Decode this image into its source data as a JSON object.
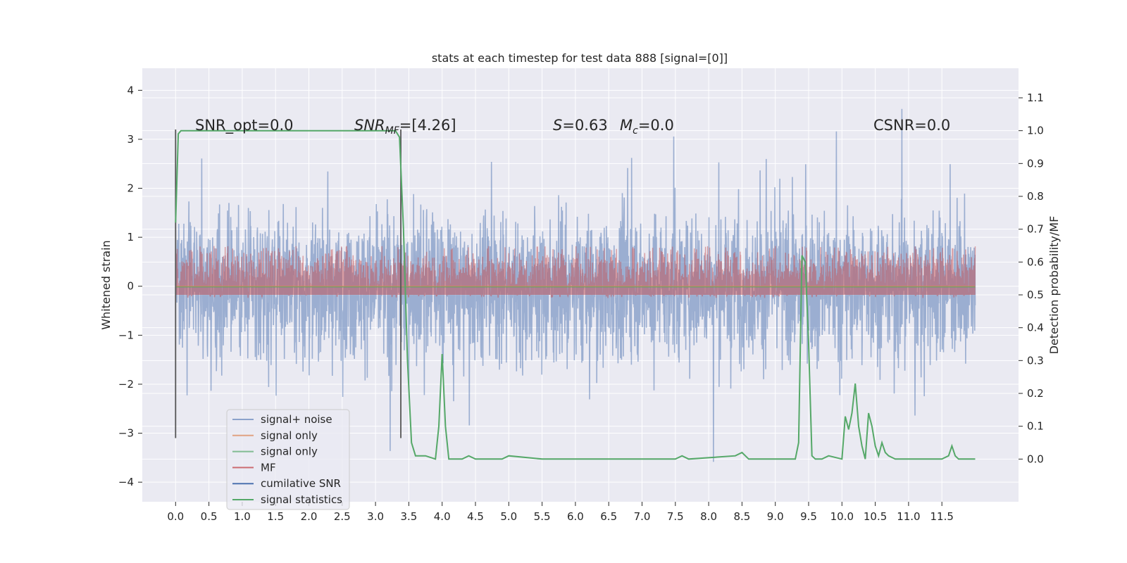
{
  "chart_data": {
    "type": "line",
    "title": "stats at each timestep for test data 888 [signal=[0]]",
    "ylabel_left": "Whitened strain",
    "ylabel_right": "Detection probability/MF",
    "xlim": [
      -0.5,
      12.65
    ],
    "ylim_left": [
      -4.4,
      4.45
    ],
    "ylim_right": [
      -0.13,
      1.19
    ],
    "x_ticks": [
      "0.0",
      "0.5",
      "1.0",
      "1.5",
      "2.0",
      "2.5",
      "3.0",
      "3.5",
      "4.0",
      "4.5",
      "5.0",
      "5.5",
      "6.0",
      "6.5",
      "7.0",
      "7.5",
      "8.0",
      "8.5",
      "9.0",
      "9.5",
      "10.0",
      "10.5",
      "11.0",
      "11.5"
    ],
    "y_ticks_left": [
      "4",
      "3",
      "2",
      "1",
      "0",
      "−1",
      "−2",
      "−3",
      "−4"
    ],
    "y_ticks_right": [
      "1.1",
      "1.0",
      "0.9",
      "0.8",
      "0.7",
      "0.6",
      "0.5",
      "0.4",
      "0.3",
      "0.2",
      "0.1",
      "0.0"
    ],
    "grid": true,
    "legend_position": "lower-left",
    "legend": [
      "signal+ noise",
      "signal only",
      "signal only",
      "MF",
      "cumilative SNR",
      "signal statistics"
    ],
    "colors": {
      "signal_noise": "#4c72b0",
      "signal_only_orange": "#dd8452",
      "signal_only_green": "#55a868",
      "mf": "#c44e52",
      "cumulative_snr": "#4c72b0",
      "signal_statistics": "#55a868",
      "background": "#eaeaf2",
      "grid": "#ffffff"
    },
    "annotations": {
      "snr_opt": "SNR_opt=0.0",
      "snr_mf": "=[4.26]",
      "snr_mf_label": "SNR",
      "snr_mf_sub": "MF",
      "s": "=0.63",
      "s_label": "S",
      "mc": "=0.0",
      "mc_label": "M",
      "mc_sub": "c",
      "csnr": "CSNR=0.0"
    },
    "vertical_markers": [
      0.0,
      3.38
    ],
    "signal_noise": {
      "x_range": [
        0.0,
        12.0
      ],
      "envelope_left": [
        -3.4,
        3.4
      ],
      "typical_band": [
        -1.5,
        1.5
      ]
    },
    "mf_band": [
      0.0,
      0.65
    ],
    "signal_statistics": {
      "x": [
        0.0,
        0.04,
        0.08,
        0.12,
        3.3,
        3.36,
        3.42,
        3.48,
        3.54,
        3.6,
        3.75,
        3.9,
        3.95,
        4.0,
        4.05,
        4.1,
        4.3,
        4.4,
        4.5,
        4.9,
        5.0,
        5.5,
        7.5,
        7.6,
        7.7,
        8.4,
        8.5,
        8.6,
        9.3,
        9.35,
        9.4,
        9.45,
        9.5,
        9.55,
        9.6,
        9.7,
        9.8,
        10.0,
        10.05,
        10.1,
        10.15,
        10.2,
        10.25,
        10.3,
        10.35,
        10.4,
        10.45,
        10.5,
        10.55,
        10.6,
        10.65,
        10.7,
        10.8,
        11.0,
        11.5,
        11.6,
        11.65,
        11.7,
        11.75,
        11.8,
        11.9,
        12.0
      ],
      "y": [
        0.72,
        0.99,
        1.0,
        1.0,
        1.0,
        0.98,
        0.7,
        0.3,
        0.05,
        0.01,
        0.01,
        0.0,
        0.1,
        0.32,
        0.1,
        0.0,
        0.0,
        0.01,
        0.0,
        0.0,
        0.01,
        0.0,
        0.0,
        0.01,
        0.0,
        0.01,
        0.02,
        0.0,
        0.0,
        0.05,
        0.62,
        0.6,
        0.35,
        0.01,
        0.0,
        0.0,
        0.01,
        0.0,
        0.13,
        0.09,
        0.14,
        0.23,
        0.1,
        0.04,
        0.0,
        0.14,
        0.1,
        0.04,
        0.01,
        0.05,
        0.02,
        0.01,
        0.0,
        0.0,
        0.0,
        0.01,
        0.04,
        0.01,
        0.0,
        0.0,
        0.0,
        0.0
      ]
    }
  }
}
